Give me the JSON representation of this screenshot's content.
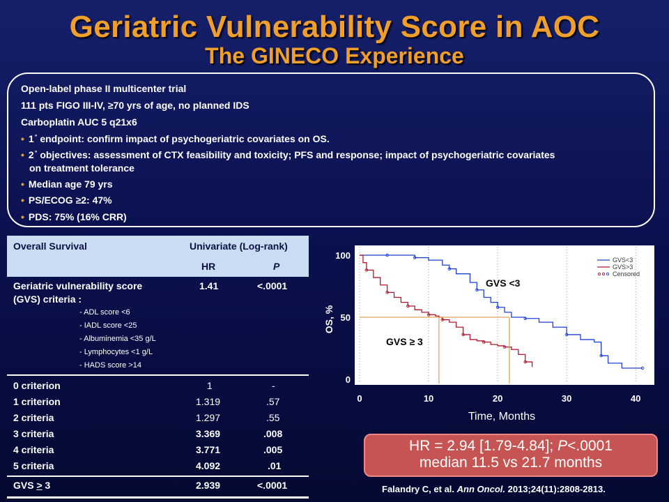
{
  "title": "Geriatric Vulnerability Score in AOC",
  "subtitle": "The GINECO Experience",
  "box": {
    "line1": "Open-label phase II multicenter trial",
    "line2": "111 pts FIGO III-IV,  ≥70 yrs of age, no planned IDS",
    "line3": "Carboplatin AUC 5 q21x6",
    "b1_num": "1",
    "b1_sup": "°",
    "b1_text": "endpoint: confirm impact of psychogeriatric covariates on OS.",
    "b2_num": "2",
    "b2_sup": "°",
    "b2_text": "objectives: assessment of CTX feasibility and toxicity; PFS and response; impact of psychogeriatric covariates",
    "b2_cont": "on treatment tolerance",
    "b3": "Median age 79 yrs",
    "b4": "PS/ECOG ≥2: 47%",
    "b5": "PDS: 75% (16% CRR)",
    "bullet": "•"
  },
  "table": {
    "h_os": "Overall Survival",
    "h_uni": "Univariate (Log-rank)",
    "h_hr": "HR",
    "h_p": "P",
    "gvs_label1": "Geriatric vulnerability score",
    "gvs_label2": "(GVS) criteria :",
    "gvs_hr": "1.41",
    "gvs_p": "<.0001",
    "criteria": [
      "- ADL score <6",
      "- IADL score <25",
      "- Albuminemia <35 g/L",
      "- Lymphocytes <1 g/L",
      "- HADS score >14"
    ],
    "rows": [
      {
        "label": "0 criterion",
        "hr": "1",
        "p": "-"
      },
      {
        "label": "1 criterion",
        "hr": "1.319",
        "p": ".57"
      },
      {
        "label": "2 criteria",
        "hr": "1.297",
        "p": ".55"
      },
      {
        "label": "3 criteria",
        "hr": "3.369",
        "p": ".008"
      },
      {
        "label": "4 criteria",
        "hr": "3.771",
        "p": ".005"
      },
      {
        "label": "5 criteria",
        "hr": "4.092",
        "p": ".01"
      }
    ],
    "gvs3_label": "GVS > 3",
    "gvs3_hr": "2.939",
    "gvs3_p": "<.0001"
  },
  "chart_data": {
    "type": "line",
    "xlabel": "Time, Months",
    "ylabel": "OS, %",
    "xlim": [
      0,
      42
    ],
    "ylim": [
      0,
      100
    ],
    "xticks": [
      "0",
      "10",
      "20",
      "30",
      "40"
    ],
    "yticks": [
      "0",
      "50",
      "100"
    ],
    "legend": [
      "GVS<3",
      "GVS>3",
      "Censored"
    ],
    "legend_placement": "top-right",
    "annotations": [
      "GVS <3",
      "GVS ≥ 3"
    ],
    "medians": [
      11.5,
      21.7
    ],
    "series": [
      {
        "name": "GVS<3",
        "color": "#1f3fd6",
        "x": [
          0,
          2,
          4,
          6,
          7,
          8,
          10,
          12,
          13,
          14,
          16,
          17,
          18,
          19,
          20,
          21,
          22,
          24,
          26,
          28,
          30,
          32,
          34,
          35,
          36,
          38,
          41
        ],
        "y": [
          100,
          100,
          100,
          100,
          100,
          98,
          96,
          92,
          89,
          85,
          78,
          72,
          66,
          62,
          58,
          54,
          50,
          49,
          46,
          42,
          36,
          32,
          30,
          19,
          13,
          9,
          9
        ]
      },
      {
        "name": "GVS>3",
        "color": "#b0182a",
        "x": [
          0,
          0.5,
          1,
          2,
          3,
          4,
          5,
          6,
          7,
          8,
          9,
          10,
          11,
          11.5,
          12,
          13,
          14,
          15,
          16,
          17,
          18,
          19,
          20,
          21,
          22,
          23,
          24,
          25
        ],
        "y": [
          100,
          94,
          88,
          82,
          76,
          70,
          66,
          62,
          59,
          56,
          54,
          52,
          51,
          50,
          48,
          46,
          42,
          36,
          32,
          31,
          30,
          28,
          27,
          26,
          24,
          20,
          14,
          10
        ]
      }
    ],
    "median_color": "#d98a30"
  },
  "hrbox": {
    "line1_a": "HR = 2.94 [1.79-4.84]; ",
    "line1_p": "P",
    "line1_b": "<.0001",
    "line2": "median 11.5 vs 21.7 months"
  },
  "ref": {
    "a": "Falandry C, et al. ",
    "journal": "Ann Oncol.",
    "b": " 2013;24(11):2808-2813."
  }
}
